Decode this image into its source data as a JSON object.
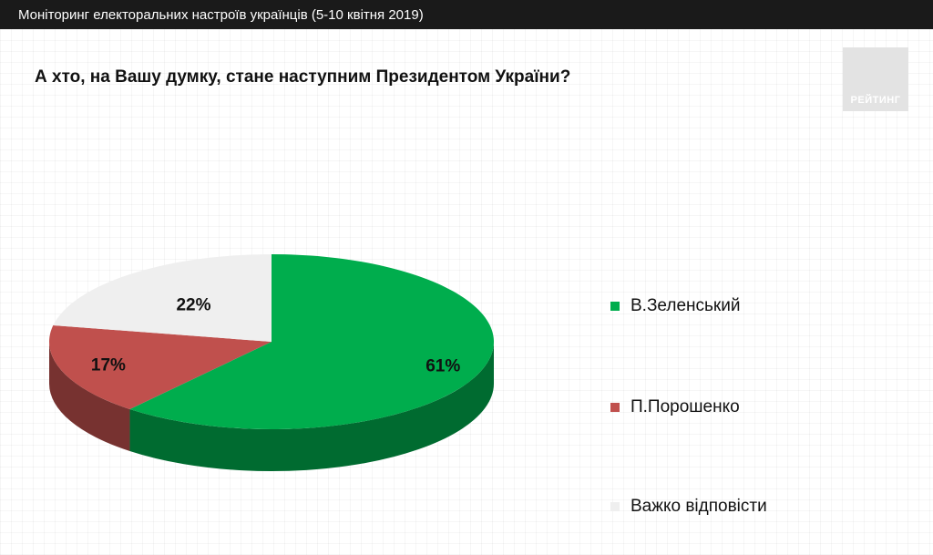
{
  "header": {
    "title": "Моніторинг електоральних настроїв українців (5-10 квітня 2019)"
  },
  "slide": {
    "question": "А хто, на Вашу думку, стане наступним Президентом України?",
    "logo_text": "РЕЙТИНГ"
  },
  "colors": {
    "zelensky": "#00ad4d",
    "poroshenko": "#c0504d",
    "hard_to_say": "#efefef"
  },
  "chart_data": {
    "type": "pie",
    "title": "",
    "series": [
      {
        "name": "В.Зеленський",
        "value": 61,
        "label": "61%",
        "color": "#00ad4d"
      },
      {
        "name": "П.Порошенко",
        "value": 17,
        "label": "17%",
        "color": "#c0504d"
      },
      {
        "name": "Важко відповісти",
        "value": 22,
        "label": "22%",
        "color": "#efefef"
      }
    ],
    "legend_position": "right",
    "style": "3d"
  }
}
